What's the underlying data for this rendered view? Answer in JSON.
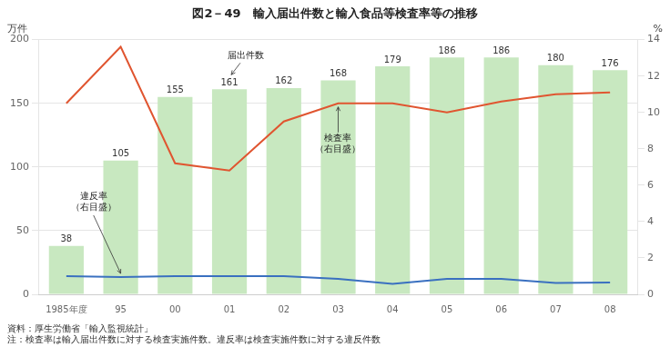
{
  "chart_data": {
    "type": "bar",
    "title": "図2－49　輸入届出件数と輸入食品等検査率等の推移",
    "categories": [
      "1985年度",
      "95",
      "00",
      "01",
      "02",
      "03",
      "04",
      "05",
      "06",
      "07",
      "08"
    ],
    "series": [
      {
        "type": "bar",
        "color": "#c8e8c0",
        "data_labels": true,
        "values": [
          38,
          105,
          155,
          161,
          162,
          168,
          179,
          186,
          186,
          180,
          176
        ]
      },
      {
        "type": "line",
        "axis": "y2",
        "color": "#e05530",
        "marker": "none",
        "values": [
          10.5,
          13.6,
          7.2,
          6.8,
          9.5,
          10.5,
          10.5,
          10.0,
          10.6,
          11.0,
          11.1
        ]
      },
      {
        "type": "line",
        "axis": "y2",
        "color": "#3a70c0",
        "marker": "none",
        "values": [
          1.0,
          0.95,
          1.0,
          1.0,
          1.0,
          0.85,
          0.58,
          0.85,
          0.85,
          0.62,
          0.65
        ]
      }
    ],
    "ylim": [
      0,
      200
    ],
    "yticks": [
      0,
      50,
      100,
      150,
      200
    ],
    "y2lim": [
      0,
      14
    ],
    "y2ticks": [
      0,
      2,
      4,
      6,
      8,
      10,
      12,
      14
    ],
    "ylabel": "万件",
    "y2label": "%",
    "grid": true,
    "annotations": [
      "届出件数",
      "検査率\n（右目盛）",
      "違反率\n（右目盛）"
    ],
    "notes": [
      "資料：厚生労働省「輸入監視統計」",
      "注：検査率は輸入届出件数に対する検査実施件数。違反率は検査実施件数に対する違反件数"
    ]
  }
}
